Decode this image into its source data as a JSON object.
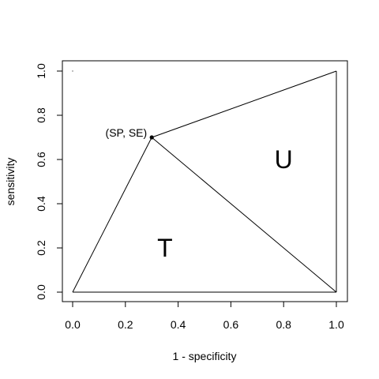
{
  "chart_data": {
    "type": "line",
    "xlabel": "1 - specificity",
    "ylabel": "sensitivity",
    "xlim": [
      0,
      1
    ],
    "ylim": [
      0,
      1
    ],
    "x_ticks": [
      "0.0",
      "0.2",
      "0.4",
      "0.6",
      "0.8",
      "1.0"
    ],
    "y_ticks": [
      "0.0",
      "0.2",
      "0.4",
      "0.6",
      "0.8",
      "1.0"
    ],
    "grid": false,
    "point": {
      "label": "(SP, SE)",
      "x": 0.3,
      "y": 0.7
    },
    "segments": [
      {
        "from": [
          0,
          0
        ],
        "to": [
          0.3,
          0.7
        ]
      },
      {
        "from": [
          0.3,
          0.7
        ],
        "to": [
          1,
          1
        ]
      },
      {
        "from": [
          0.3,
          0.7
        ],
        "to": [
          1,
          0
        ]
      },
      {
        "from": [
          0,
          0
        ],
        "to": [
          1,
          0
        ]
      },
      {
        "from": [
          1,
          0
        ],
        "to": [
          1,
          1
        ]
      }
    ],
    "region_labels": [
      {
        "text": "T",
        "x": 0.35,
        "y": 0.2
      },
      {
        "text": "U",
        "x": 0.8,
        "y": 0.6
      }
    ],
    "stray_marks": [
      {
        "x": 0.0,
        "y": 1.0
      }
    ]
  }
}
